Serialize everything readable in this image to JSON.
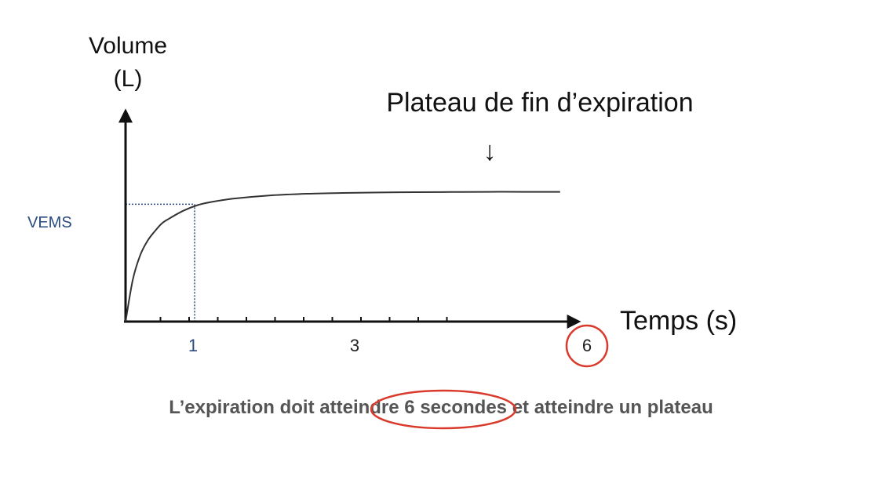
{
  "chart_data": {
    "type": "line",
    "title": "",
    "ylabel_line1": "Volume",
    "ylabel_line2": "(L)",
    "xlabel": "Temps (s)",
    "x_ticks": [
      0.5,
      1,
      1.5,
      2,
      2.5,
      3,
      3.5,
      4,
      4.5,
      5,
      5.5
    ],
    "x_tick_labels": [
      {
        "x": 1,
        "label": "1",
        "color": "#2b4a7f"
      },
      {
        "x": 3,
        "label": "3",
        "color": "#222222"
      },
      {
        "x": 6,
        "label": "6",
        "color": "#222222",
        "circled": true
      }
    ],
    "xlim": [
      0,
      6
    ],
    "ylim": [
      0,
      10
    ],
    "series": [
      {
        "x": [
          0,
          0.1,
          0.2,
          0.3,
          0.4,
          0.5,
          0.6,
          0.8,
          1.0,
          1.2,
          1.5,
          2.0,
          2.5,
          3.0,
          3.5,
          4.0,
          4.5,
          5.0,
          5.5,
          6.0
        ],
        "values": [
          0,
          2.6,
          4.1,
          5.0,
          5.6,
          6.1,
          6.4,
          6.9,
          7.25,
          7.45,
          7.65,
          7.85,
          7.95,
          8.0,
          8.03,
          8.05,
          8.06,
          8.07,
          8.07,
          8.07
        ],
        "color": "#333333"
      }
    ],
    "fev1": {
      "label": "VEMS",
      "x": 1.1,
      "y": 7.3,
      "color": "#2b4a7f"
    },
    "annotation": {
      "text": "Plateau de fin d’expiration",
      "arrow": "↓",
      "x": 5.15
    }
  },
  "caption": {
    "before": "L’expiration doit atteindre ",
    "highlight": "6 secondes",
    "after": " et atteindre un plateau",
    "highlight_color": "#d93a2b"
  },
  "accent_color": "#d93a2b"
}
